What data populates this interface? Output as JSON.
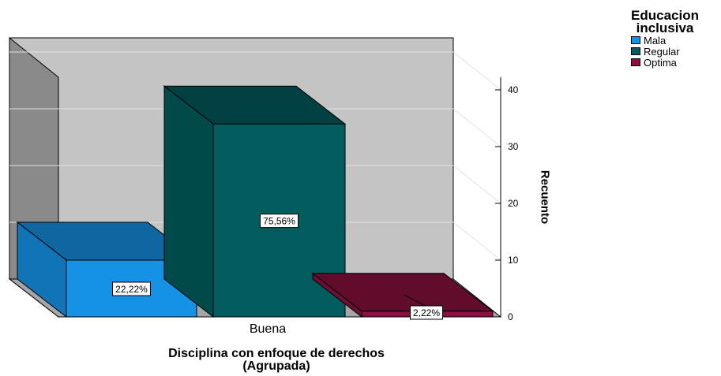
{
  "chart_data": {
    "type": "bar",
    "categories": [
      "Buena"
    ],
    "series": [
      {
        "name": "Mala",
        "values": [
          10
        ],
        "label": "22,22%",
        "color": "#1591e5"
      },
      {
        "name": "Regular",
        "values": [
          34
        ],
        "label": "75,56%",
        "color": "#015c5e"
      },
      {
        "name": "Optima",
        "values": [
          1
        ],
        "label": "2,22%",
        "color": "#8b1140"
      }
    ],
    "ylabel": "Recuento",
    "xlabel_title": "Disciplina con enfoque de derechos",
    "xlabel_subtitle": "(Agrupada)",
    "yticks": [
      "0",
      "10",
      "20",
      "30",
      "40"
    ],
    "ylim": [
      0,
      40
    ],
    "legend_title_line1": "Educacion",
    "legend_title_line2": "inclusiva",
    "legend_position": "top-right",
    "grid": true
  }
}
